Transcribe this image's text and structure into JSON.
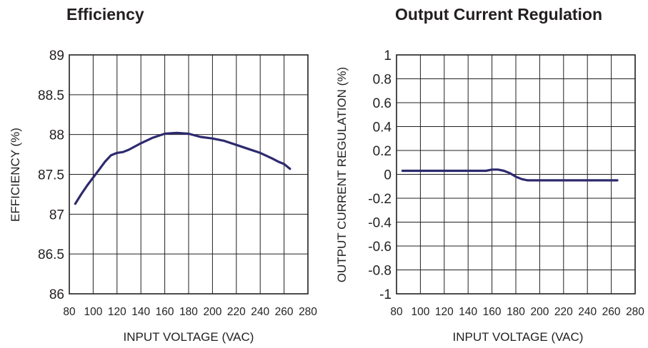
{
  "chart_data": [
    {
      "type": "line",
      "title": "Efficiency",
      "xlabel": "INPUT VOLTAGE (VAC)",
      "ylabel": "EFFICIENCY (%)",
      "xlim": [
        80,
        280
      ],
      "ylim": [
        86,
        89
      ],
      "x_ticks": [
        80,
        100,
        120,
        140,
        160,
        180,
        200,
        220,
        240,
        260,
        280
      ],
      "y_ticks": [
        86,
        86.5,
        87,
        87.5,
        88,
        88.5,
        89
      ],
      "x_tick_labels": [
        "80",
        "100",
        "120",
        "140",
        "160",
        "180",
        "200",
        "220",
        "240",
        "260",
        "280"
      ],
      "y_tick_labels": [
        "86",
        "86.5",
        "87",
        "87.5",
        "88",
        "88.5",
        "89"
      ],
      "grid": true,
      "line_color": "#2d2a6e",
      "series": [
        {
          "x": [
            85,
            90,
            95,
            100,
            105,
            110,
            115,
            120,
            125,
            130,
            140,
            150,
            160,
            170,
            180,
            190,
            200,
            210,
            220,
            230,
            240,
            250,
            255,
            260,
            265
          ],
          "y": [
            87.13,
            87.25,
            87.36,
            87.46,
            87.56,
            87.66,
            87.74,
            87.77,
            87.78,
            87.81,
            87.89,
            87.96,
            88.01,
            88.02,
            88.01,
            87.97,
            87.95,
            87.92,
            87.87,
            87.82,
            87.77,
            87.7,
            87.66,
            87.63,
            87.57
          ]
        }
      ]
    },
    {
      "type": "line",
      "title": "Output Current Regulation",
      "xlabel": "INPUT VOLTAGE (VAC)",
      "ylabel": "OUTPUT CURRENT REGULATION (%)",
      "xlim": [
        80,
        280
      ],
      "ylim": [
        -1,
        1
      ],
      "x_ticks": [
        80,
        100,
        120,
        140,
        160,
        180,
        200,
        220,
        240,
        260,
        280
      ],
      "y_ticks": [
        -1,
        -0.8,
        -0.6,
        -0.4,
        -0.2,
        0,
        0.2,
        0.4,
        0.6,
        0.8,
        1
      ],
      "x_tick_labels": [
        "80",
        "100",
        "120",
        "140",
        "160",
        "180",
        "200",
        "220",
        "240",
        "260",
        "280"
      ],
      "y_tick_labels": [
        "-1",
        "-0.8",
        "-0.6",
        "-0.4",
        "-0.2",
        "0",
        "0.2",
        "0.4",
        "0.6",
        "0.8",
        "1"
      ],
      "grid": true,
      "line_color": "#2d2a6e",
      "series": [
        {
          "x": [
            85,
            100,
            120,
            140,
            155,
            160,
            165,
            170,
            175,
            180,
            185,
            190,
            195,
            200,
            210,
            220,
            240,
            260,
            265
          ],
          "y": [
            0.03,
            0.03,
            0.03,
            0.03,
            0.03,
            0.04,
            0.04,
            0.03,
            0.01,
            -0.02,
            -0.04,
            -0.05,
            -0.05,
            -0.05,
            -0.05,
            -0.05,
            -0.05,
            -0.05,
            -0.05
          ]
        }
      ]
    }
  ]
}
